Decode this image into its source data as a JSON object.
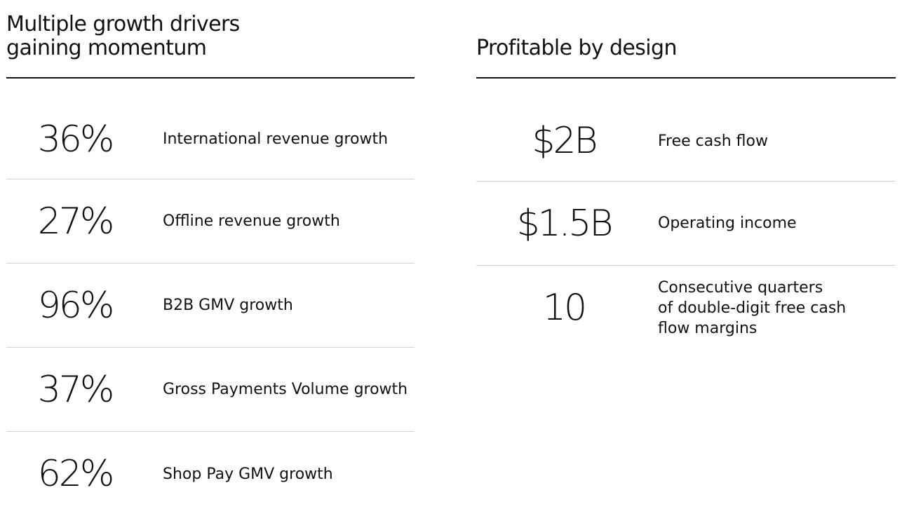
{
  "growth": {
    "heading": "Multiple growth drivers\ngaining momentum",
    "items": [
      {
        "value": "36%",
        "label": "International revenue growth"
      },
      {
        "value": "27%",
        "label": "Offline revenue growth"
      },
      {
        "value": "96%",
        "label": "B2B GMV growth"
      },
      {
        "value": "37%",
        "label": "Gross Payments Volume growth"
      },
      {
        "value": "62%",
        "label": "Shop Pay GMV growth"
      }
    ]
  },
  "profit": {
    "heading": "Profitable by design",
    "items": [
      {
        "value": "$2B",
        "label": "Free cash flow"
      },
      {
        "value": "$1.5B",
        "label": "Operating income"
      },
      {
        "value": "10",
        "label": "Consecutive quarters\nof double-digit free cash\nflow margins"
      }
    ]
  }
}
